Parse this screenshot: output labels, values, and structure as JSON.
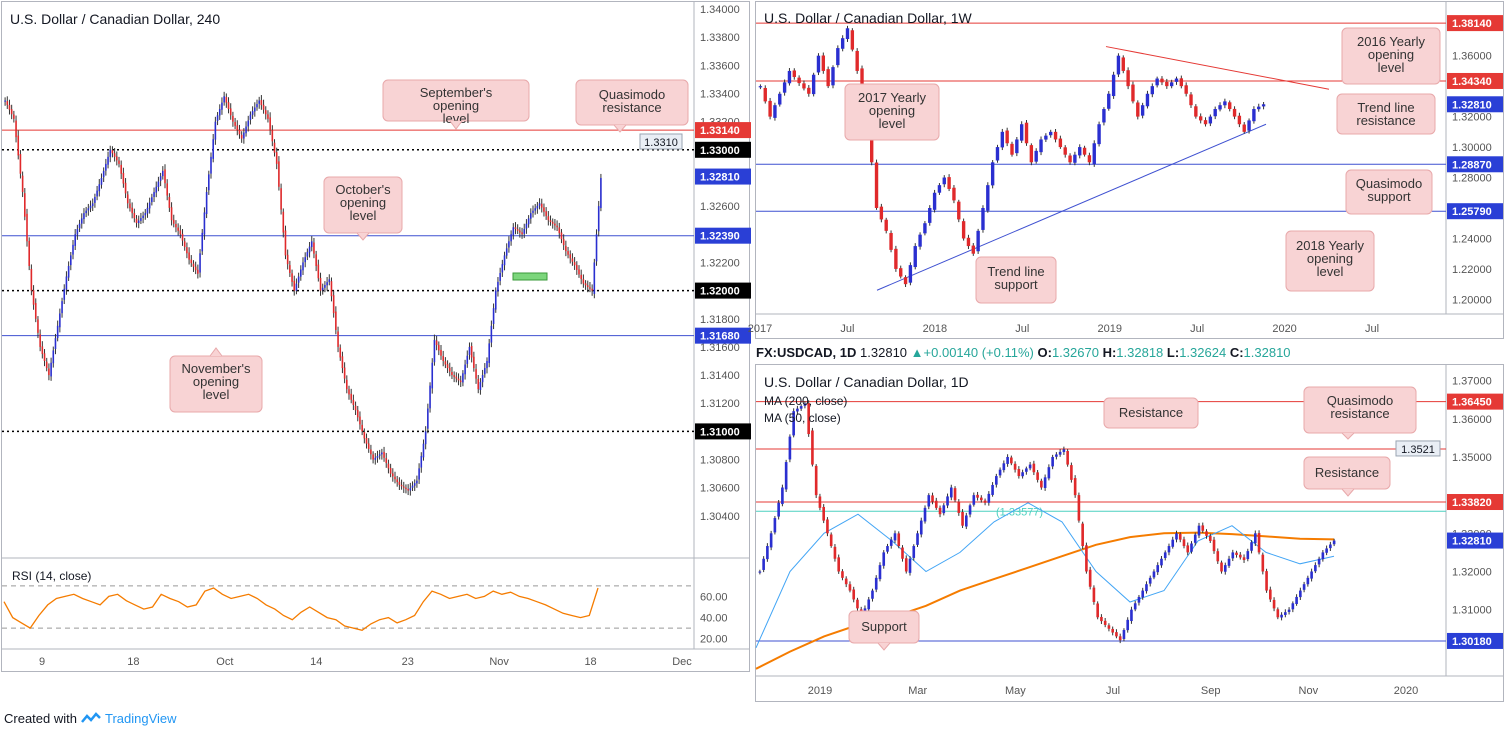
{
  "footer": {
    "created_with": "Created with",
    "brand": "TradingView"
  },
  "chart_data": [
    {
      "id": "h4",
      "type": "candlestick",
      "title": "U.S. Dollar / Canadian Dollar, 240",
      "ylim": [
        1.3025,
        1.34
      ],
      "y_ticks": [
        "1.34000",
        "1.33800",
        "1.33600",
        "1.33400",
        "1.33200",
        "1.32800",
        "1.32600",
        "1.32200",
        "1.31800",
        "1.31600",
        "1.31400",
        "1.31200",
        "1.30800",
        "1.30600",
        "1.30400"
      ],
      "x_ticks": [
        "9",
        "18",
        "Oct",
        "14",
        "23",
        "Nov",
        "18",
        "Dec"
      ],
      "levels": [
        {
          "value": 1.3314,
          "label": "1.33140",
          "style": "red"
        },
        {
          "value": 1.33,
          "label": "1.33000",
          "style": "dotted"
        },
        {
          "value": 1.3281,
          "label": "1.32810",
          "style": "current"
        },
        {
          "value": 1.3239,
          "label": "1.32390",
          "style": "blue"
        },
        {
          "value": 1.32,
          "label": "1.32000",
          "style": "dotted"
        },
        {
          "value": 1.3168,
          "label": "1.31680",
          "style": "blue"
        },
        {
          "value": 1.31,
          "label": "1.31000",
          "style": "dotted"
        }
      ],
      "alert_label": "1.3310",
      "callouts": [
        "September's opening level",
        "Quasimodo resistance",
        "October's opening level",
        "November's opening level"
      ],
      "close_path": [
        1.3335,
        1.3322,
        1.327,
        1.32,
        1.316,
        1.314,
        1.3175,
        1.321,
        1.324,
        1.3255,
        1.3262,
        1.328,
        1.33,
        1.329,
        1.3262,
        1.3248,
        1.3255,
        1.327,
        1.3285,
        1.325,
        1.324,
        1.3222,
        1.3212,
        1.327,
        1.332,
        1.3338,
        1.332,
        1.3308,
        1.3325,
        1.3335,
        1.3322,
        1.329,
        1.3225,
        1.32,
        1.322,
        1.3235,
        1.32,
        1.3208,
        1.316,
        1.313,
        1.3115,
        1.3095,
        1.308,
        1.3085,
        1.307,
        1.3062,
        1.3058,
        1.3065,
        1.31,
        1.3165,
        1.315,
        1.314,
        1.3135,
        1.316,
        1.313,
        1.315,
        1.32,
        1.3225,
        1.3245,
        1.324,
        1.3255,
        1.3262,
        1.325,
        1.3245,
        1.3228,
        1.3218,
        1.3205,
        1.32,
        1.328
      ],
      "rsi": {
        "label": "RSI (14, close)",
        "levels": [
          70,
          30
        ],
        "y_ticks": [
          "60.00",
          "40.00",
          "20.00"
        ],
        "values": [
          55,
          40,
          35,
          30,
          42,
          52,
          58,
          60,
          62,
          58,
          55,
          52,
          60,
          62,
          56,
          52,
          48,
          50,
          62,
          58,
          55,
          50,
          52,
          65,
          68,
          62,
          58,
          60,
          62,
          58,
          52,
          48,
          42,
          38,
          45,
          50,
          45,
          40,
          38,
          32,
          30,
          28,
          34,
          38,
          40,
          35,
          38,
          42,
          55,
          65,
          62,
          58,
          60,
          62,
          58,
          60,
          65,
          62,
          64,
          60,
          58,
          55,
          52,
          48,
          44,
          42,
          40,
          42,
          68
        ]
      }
    },
    {
      "id": "w1",
      "type": "candlestick",
      "title": "U.S. Dollar / Canadian Dollar, 1W",
      "ylim": [
        1.195,
        1.39
      ],
      "y_ticks": [
        "1.36000",
        "1.32000",
        "1.30000",
        "1.28000",
        "1.24000",
        "1.22000",
        "1.20000"
      ],
      "x_ticks": [
        "2017",
        "Jul",
        "2018",
        "Jul",
        "2019",
        "Jul",
        "2020",
        "Jul"
      ],
      "levels": [
        {
          "value": 1.3814,
          "label": "1.38140",
          "style": "red"
        },
        {
          "value": 1.3434,
          "label": "1.34340",
          "style": "red"
        },
        {
          "value": 1.3281,
          "label": "1.32810",
          "style": "current"
        },
        {
          "value": 1.2887,
          "label": "1.28870",
          "style": "blue"
        },
        {
          "value": 1.2579,
          "label": "1.25790",
          "style": "blue"
        }
      ],
      "callouts": [
        "2016 Yearly opening level",
        "2017 Yearly opening level",
        "Trend line resistance",
        "Quasimodo support",
        "2018 Yearly opening level",
        "Trend line support"
      ],
      "close_path": [
        1.34,
        1.32,
        1.335,
        1.35,
        1.342,
        1.335,
        1.36,
        1.34,
        1.365,
        1.378,
        1.35,
        1.32,
        1.26,
        1.245,
        1.22,
        1.21,
        1.235,
        1.25,
        1.27,
        1.28,
        1.265,
        1.24,
        1.23,
        1.26,
        1.29,
        1.31,
        1.295,
        1.315,
        1.29,
        1.305,
        1.31,
        1.3,
        1.29,
        1.3,
        1.29,
        1.315,
        1.335,
        1.36,
        1.34,
        1.32,
        1.335,
        1.345,
        1.34,
        1.345,
        1.335,
        1.32,
        1.315,
        1.325,
        1.33,
        1.32,
        1.31,
        1.325,
        1.3281
      ],
      "trendline_resistance": [
        {
          "x": "2018-12",
          "y": 1.366
        },
        {
          "x": "2019-12",
          "y": 1.338
        }
      ],
      "trendline_support": [
        {
          "x": "2017-07",
          "y": 1.206
        },
        {
          "x": "2019-12",
          "y": 1.315
        }
      ]
    },
    {
      "id": "d1",
      "type": "candlestick",
      "title": "U.S. Dollar / Canadian Dollar, 1D",
      "ohlc_bar": {
        "symbol": "FX:USDCAD, 1D",
        "last": "1.32810",
        "change": "+0.00140 (+0.11%)",
        "o_label": "O:",
        "o": "1.32670",
        "h_label": "H:",
        "h": "1.32818",
        "l_label": "L:",
        "l": "1.32624",
        "c_label": "C:",
        "c": "1.32810"
      },
      "legend": [
        "MA (200, close)",
        "MA (50, close)"
      ],
      "ylim": [
        1.2955,
        1.372
      ],
      "y_ticks": [
        "1.37000",
        "1.36000",
        "1.35000",
        "1.33000",
        "1.32000",
        "1.31000"
      ],
      "x_ticks": [
        "2019",
        "Mar",
        "May",
        "Jul",
        "Sep",
        "Nov",
        "2020"
      ],
      "levels": [
        {
          "value": 1.3645,
          "label": "1.36450",
          "style": "red"
        },
        {
          "value": 1.3521,
          "label": "1.3521",
          "style": "alert"
        },
        {
          "value": 1.3382,
          "label": "1.33820",
          "style": "red"
        },
        {
          "value": 1.33577,
          "label": "1.33577",
          "style": "teal"
        },
        {
          "value": 1.3281,
          "label": "1.32810",
          "style": "current"
        },
        {
          "value": 1.3018,
          "label": "1.30180",
          "style": "blue"
        }
      ],
      "callouts": [
        "Resistance",
        "Quasimodo resistance",
        "Resistance",
        "Support"
      ],
      "close_path": [
        1.32,
        1.33,
        1.342,
        1.362,
        1.364,
        1.34,
        1.33,
        1.32,
        1.315,
        1.308,
        1.315,
        1.325,
        1.33,
        1.32,
        1.33,
        1.34,
        1.335,
        1.342,
        1.332,
        1.34,
        1.338,
        1.345,
        1.35,
        1.345,
        1.348,
        1.342,
        1.35,
        1.352,
        1.34,
        1.32,
        1.308,
        1.305,
        1.302,
        1.31,
        1.315,
        1.32,
        1.325,
        1.33,
        1.325,
        1.332,
        1.328,
        1.32,
        1.325,
        1.323,
        1.33,
        1.315,
        1.308,
        1.31,
        1.315,
        1.32,
        1.325,
        1.3281
      ],
      "ma200": [
        1.2945,
        1.299,
        1.303,
        1.306,
        1.308,
        1.311,
        1.315,
        1.318,
        1.321,
        1.324,
        1.327,
        1.329,
        1.33,
        1.3302,
        1.3298,
        1.3292,
        1.3286,
        1.3284
      ],
      "ma50": [
        1.3,
        1.32,
        1.33,
        1.335,
        1.328,
        1.32,
        1.325,
        1.333,
        1.338,
        1.333,
        1.32,
        1.312,
        1.315,
        1.328,
        1.332,
        1.325,
        1.322,
        1.324
      ]
    }
  ]
}
